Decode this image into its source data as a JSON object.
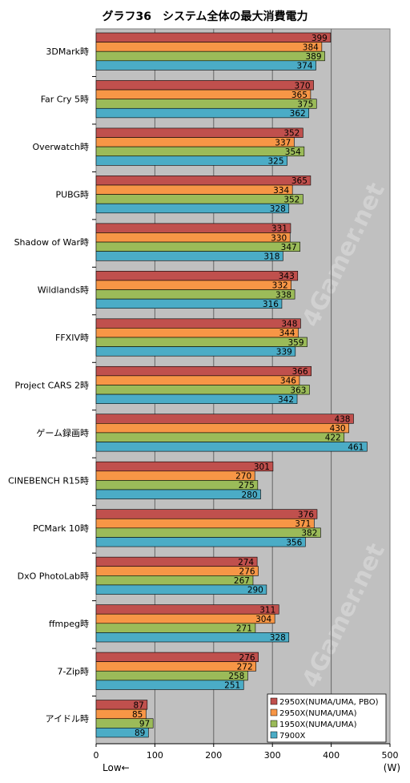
{
  "chart_data": {
    "type": "bar",
    "orientation": "horizontal",
    "title": "グラフ36　システム全体の最大消費電力",
    "categories": [
      "3DMark時",
      "Far Cry 5時",
      "Overwatch時",
      "PUBG時",
      "Shadow of War時",
      "Wildlands時",
      "FFXIV時",
      "Project CARS 2時",
      "ゲーム録画時",
      "CINEBENCH R15時",
      "PCMark 10時",
      "DxO PhotoLab時",
      "ffmpeg時",
      "7-Zip時",
      "アイドル時"
    ],
    "series": [
      {
        "name": "2950X(NUMA/UMA, PBO)",
        "color": "#c0504d",
        "values": [
          399,
          370,
          352,
          365,
          331,
          343,
          348,
          366,
          438,
          301,
          376,
          274,
          311,
          276,
          87
        ]
      },
      {
        "name": "2950X(NUMA/UMA)",
        "color": "#f79646",
        "values": [
          384,
          365,
          337,
          334,
          330,
          332,
          344,
          346,
          430,
          270,
          371,
          276,
          304,
          272,
          85
        ]
      },
      {
        "name": "1950X(NUMA/UMA)",
        "color": "#9bbb59",
        "values": [
          389,
          375,
          354,
          352,
          347,
          338,
          359,
          363,
          422,
          275,
          382,
          267,
          271,
          258,
          97
        ]
      },
      {
        "name": "7900X",
        "color": "#4bacc6",
        "values": [
          374,
          362,
          325,
          328,
          318,
          316,
          339,
          342,
          461,
          280,
          356,
          290,
          328,
          251,
          89
        ]
      }
    ],
    "xlim": [
      0,
      500
    ],
    "xticks": [
      0,
      100,
      200,
      300,
      400,
      500
    ],
    "x_unit": "(W)",
    "x_direction_note": "Low←",
    "grid": true,
    "legend_position": "bottom-right",
    "watermark": "4Gamer.net",
    "plot_background": "#c0c0c0"
  }
}
